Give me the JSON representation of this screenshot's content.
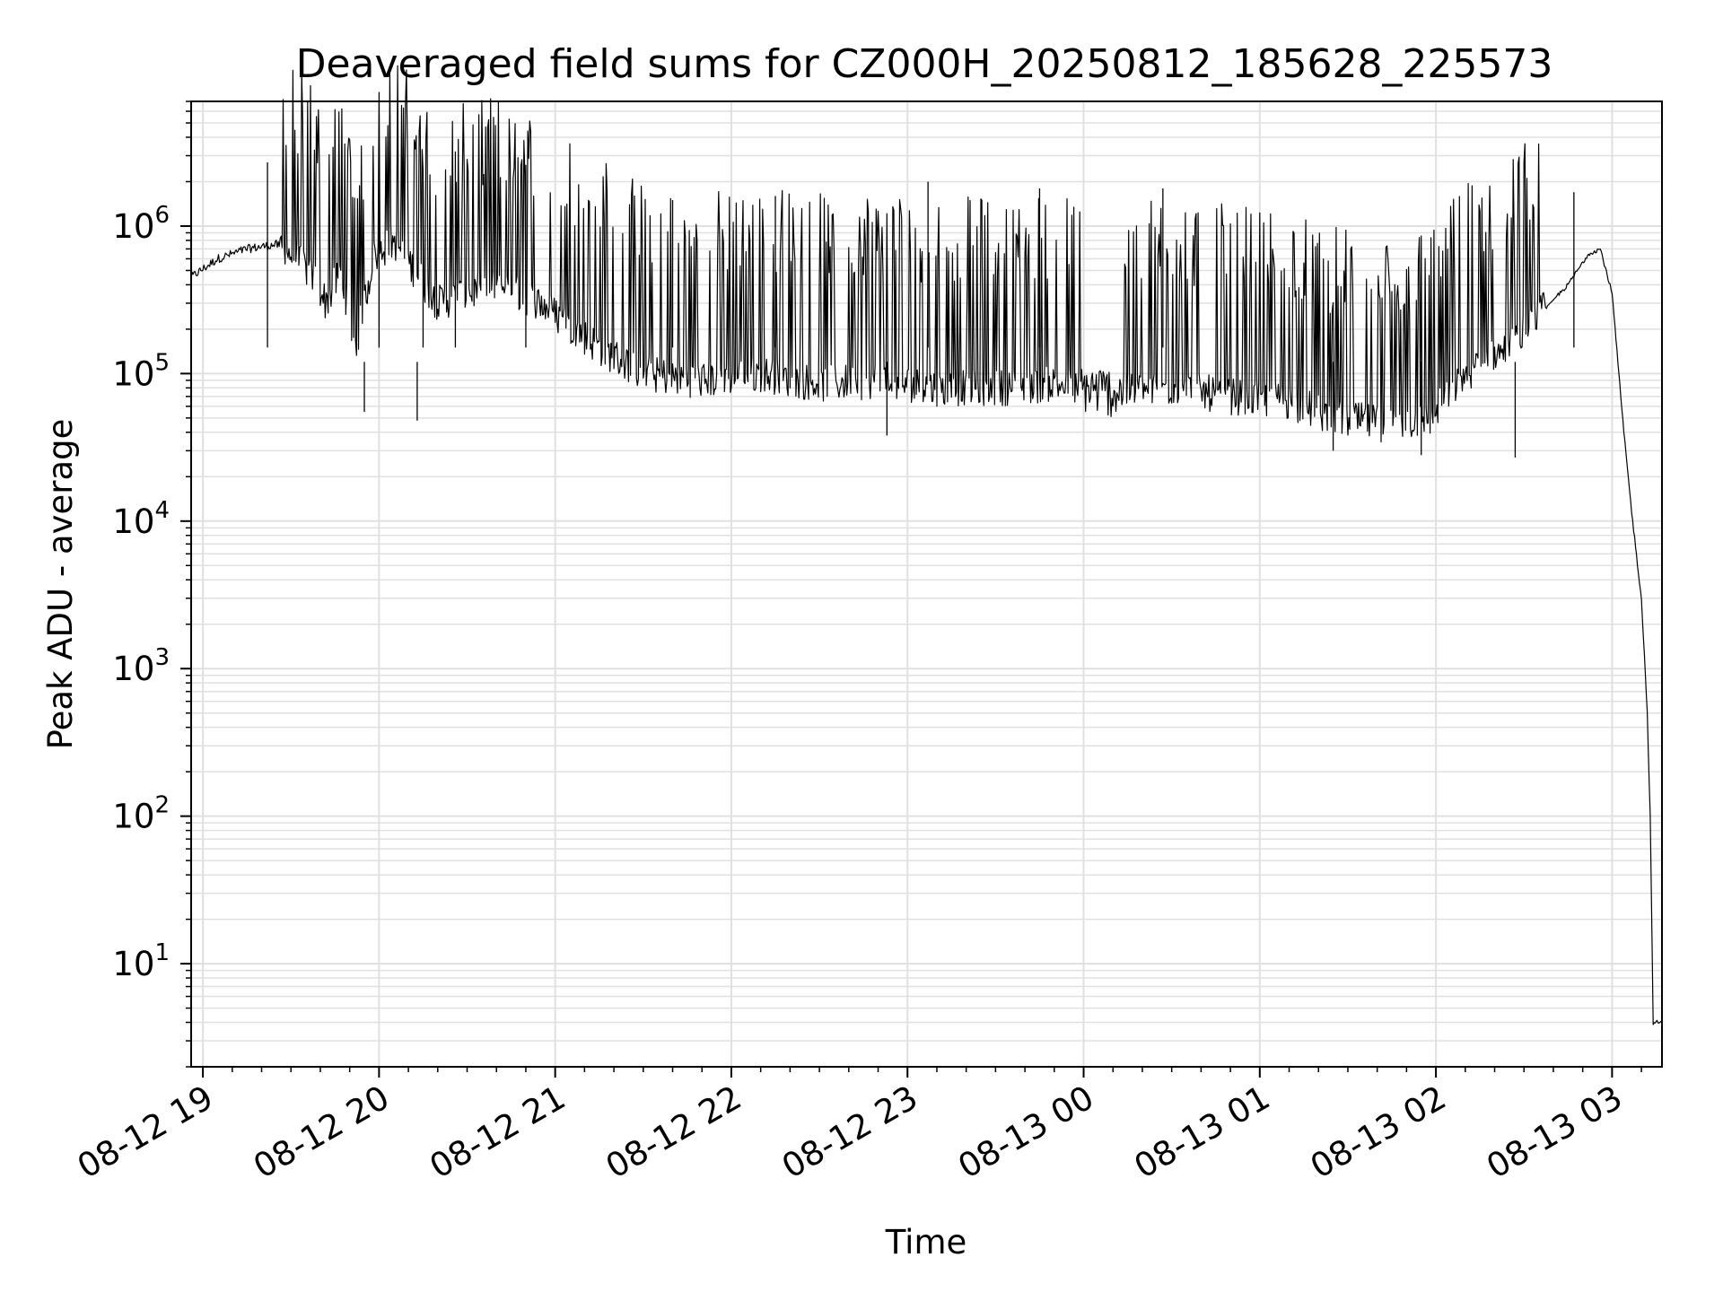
{
  "chart_data": {
    "type": "line",
    "title": "Deaveraged field sums for CZ000H_20250812_185628_225573",
    "xlabel": "Time",
    "ylabel": "Peak ADU - average",
    "yscale": "log",
    "grid": true,
    "line_color": "#000000",
    "grid_color": "#e0e0e0",
    "x_tick_labels": [
      "08-12 19",
      "08-12 20",
      "08-12 21",
      "08-12 22",
      "08-12 23",
      "08-13 00",
      "08-13 01",
      "08-13 02",
      "08-13 03"
    ],
    "y_tick_labels": [
      {
        "base": "10",
        "exp": "1"
      },
      {
        "base": "10",
        "exp": "2"
      },
      {
        "base": "10",
        "exp": "3"
      },
      {
        "base": "10",
        "exp": "4"
      },
      {
        "base": "10",
        "exp": "5"
      },
      {
        "base": "10",
        "exp": "6"
      }
    ],
    "xlim": [
      "2025-08-12 18:56",
      "2025-08-13 03:17"
    ],
    "ylim": [
      2,
      7000000
    ],
    "series": [
      {
        "points": [
          [
            "2025-08-12 18:56",
            450000
          ],
          [
            "2025-08-12 19:05",
            600000
          ],
          [
            "2025-08-12 19:15",
            700000
          ],
          [
            "2025-08-12 19:25",
            750000
          ],
          [
            "2025-08-12 19:32",
            600000
          ],
          [
            "2025-08-12 19:38",
            450000
          ],
          [
            "2025-08-12 19:42",
            300000
          ],
          [
            "2025-08-12 19:47",
            500000
          ],
          [
            "2025-08-12 19:52",
            150000
          ],
          [
            "2025-08-12 19:58",
            600000
          ],
          [
            "2025-08-12 20:05",
            800000
          ],
          [
            "2025-08-12 20:20",
            300000
          ],
          [
            "2025-08-12 20:40",
            400000
          ],
          [
            "2025-08-12 20:55",
            300000
          ],
          [
            "2025-08-12 21:15",
            150000
          ],
          [
            "2025-08-12 21:30",
            100000
          ],
          [
            "2025-08-12 21:50",
            90000
          ],
          [
            "2025-08-12 22:10",
            100000
          ],
          [
            "2025-08-12 22:30",
            85000
          ],
          [
            "2025-08-12 22:50",
            90000
          ],
          [
            "2025-08-12 23:10",
            80000
          ],
          [
            "2025-08-12 23:30",
            80000
          ],
          [
            "2025-08-12 23:50",
            85000
          ],
          [
            "2025-08-13 00:10",
            75000
          ],
          [
            "2025-08-13 00:30",
            80000
          ],
          [
            "2025-08-13 00:50",
            70000
          ],
          [
            "2025-08-13 01:10",
            65000
          ],
          [
            "2025-08-13 01:25",
            50000
          ],
          [
            "2025-08-13 01:45",
            45000
          ],
          [
            "2025-08-13 01:58",
            50000
          ],
          [
            "2025-08-13 02:10",
            100000
          ],
          [
            "2025-08-13 02:25",
            150000
          ],
          [
            "2025-08-13 02:35",
            250000
          ],
          [
            "2025-08-13 02:45",
            400000
          ],
          [
            "2025-08-13 02:52",
            650000
          ],
          [
            "2025-08-13 02:56",
            700000
          ],
          [
            "2025-08-13 03:00",
            350000
          ],
          [
            "2025-08-13 03:04",
            40000
          ],
          [
            "2025-08-13 03:07",
            10000
          ],
          [
            "2025-08-13 03:10",
            3000
          ],
          [
            "2025-08-13 03:12",
            500
          ],
          [
            "2025-08-13 03:13",
            100
          ],
          [
            "2025-08-13 03:14",
            4
          ],
          [
            "2025-08-13 03:17",
            4
          ]
        ],
        "spikes": [
          [
            "2025-08-12 19:22",
            2700000
          ],
          [
            "2025-08-12 20:00",
            3500000
          ],
          [
            "2025-08-12 20:15",
            2000000
          ],
          [
            "2025-08-12 20:26",
            3200000
          ],
          [
            "2025-08-12 20:50",
            2600000
          ],
          [
            "2025-08-12 21:40",
            1500000
          ],
          [
            "2025-08-12 22:15",
            1600000
          ],
          [
            "2025-08-12 23:07",
            2000000
          ],
          [
            "2025-08-12 23:45",
            1800000
          ],
          [
            "2025-08-13 00:27",
            1800000
          ],
          [
            "2025-08-13 02:47",
            1700000
          ]
        ],
        "dips": [
          [
            "2025-08-12 19:55",
            55000
          ],
          [
            "2025-08-12 20:13",
            48000
          ],
          [
            "2025-08-12 22:53",
            38000
          ],
          [
            "2025-08-13 01:25",
            30000
          ],
          [
            "2025-08-13 01:55",
            28000
          ],
          [
            "2025-08-13 02:27",
            27000
          ]
        ]
      }
    ]
  }
}
